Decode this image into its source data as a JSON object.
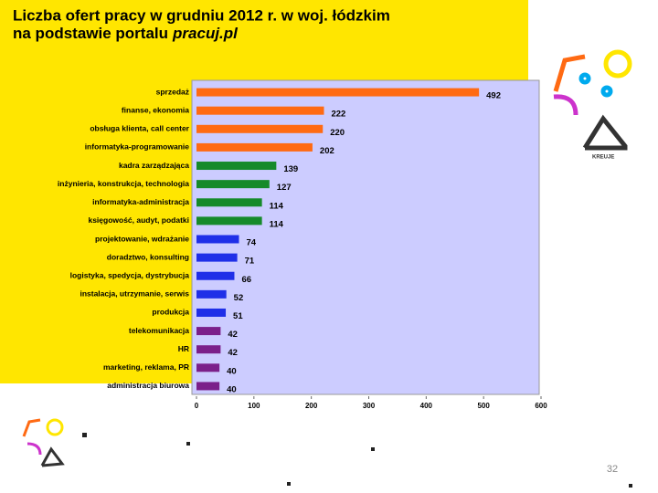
{
  "chart_data": {
    "type": "bar",
    "orientation": "horizontal",
    "title": "Liczba ofert pracy w grudniu 2012 r. w woj. łódzkim",
    "subtitle": "na podstawie portalu",
    "source": "pracuj.pl",
    "categories": [
      "sprzedaż",
      "finanse, ekonomia",
      "obsługa klienta, call center",
      "informatyka-programowanie",
      "kadra zarządzająca",
      "inżynieria, konstrukcja, technologia",
      "informatyka-administracja",
      "księgowość, audyt, podatki",
      "projektowanie, wdrażanie",
      "doradztwo, konsulting",
      "logistyka, spedycja, dystrybucja",
      "instalacja, utrzymanie, serwis",
      "produkcja",
      "telekomunikacja",
      "HR",
      "marketing, reklama, PR",
      "administracja biurowa"
    ],
    "values": [
      492,
      222,
      220,
      202,
      139,
      127,
      114,
      114,
      74,
      71,
      66,
      52,
      51,
      42,
      42,
      40,
      40
    ],
    "colors": [
      "#ff6a13",
      "#ff6a13",
      "#ff6a13",
      "#ff6a13",
      "#168a2a",
      "#168a2a",
      "#168a2a",
      "#168a2a",
      "#1f2fe8",
      "#1f2fe8",
      "#1f2fe8",
      "#1f2fe8",
      "#1f2fe8",
      "#7b1f8a",
      "#7b1f8a",
      "#7b1f8a",
      "#7b1f8a"
    ],
    "xlim": [
      0,
      600
    ],
    "xticks": [
      0,
      100,
      200,
      300,
      400,
      500,
      600
    ]
  },
  "page_number": "32"
}
